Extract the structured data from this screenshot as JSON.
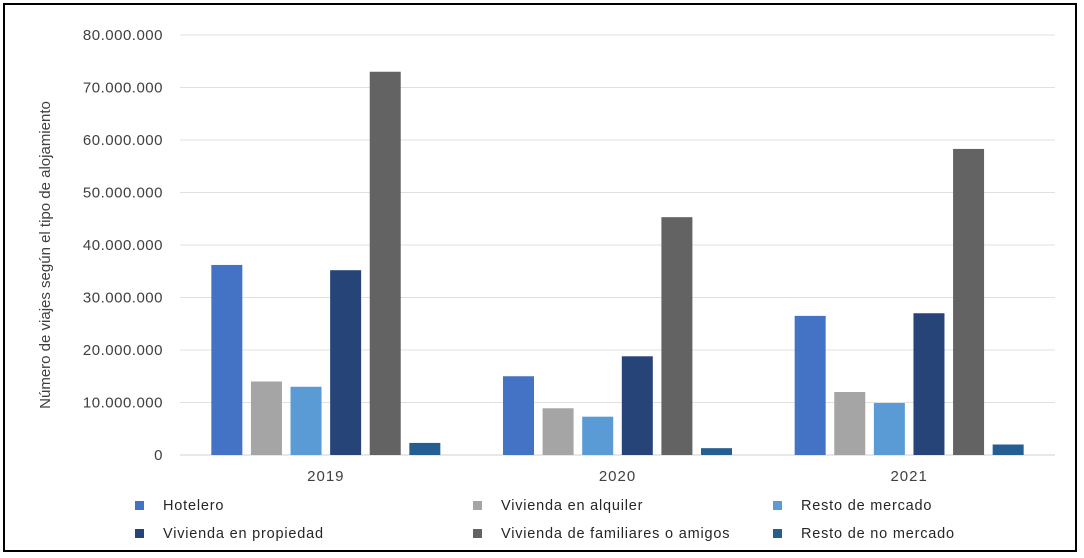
{
  "chart_data": {
    "type": "bar",
    "title": "",
    "xlabel": "",
    "ylabel": "Número de viajes según el tipo de alojamiento",
    "ylim": [
      0,
      80000000
    ],
    "ytick_step": 10000000,
    "ytick_labels": [
      "0",
      "10.000.000",
      "20.000.000",
      "30.000.000",
      "40.000.000",
      "50.000.000",
      "60.000.000",
      "70.000.000",
      "80.000.000"
    ],
    "grid": true,
    "legend_position": "bottom",
    "categories": [
      "2019",
      "2020",
      "2021"
    ],
    "series": [
      {
        "name": "Hotelero",
        "color": "#4472C4",
        "values": [
          36200000,
          15000000,
          26500000
        ]
      },
      {
        "name": "Vivienda en alquiler",
        "color": "#A5A5A5",
        "values": [
          14000000,
          8900000,
          12000000
        ]
      },
      {
        "name": "Resto de mercado",
        "color": "#5B9BD5",
        "values": [
          13000000,
          7300000,
          9900000
        ]
      },
      {
        "name": "Vivienda en propiedad",
        "color": "#264478",
        "values": [
          35200000,
          18800000,
          27000000
        ]
      },
      {
        "name": "Vivienda de familiares o amigos",
        "color": "#636363",
        "values": [
          73000000,
          45300000,
          58300000
        ]
      },
      {
        "name": "Resto de no mercado",
        "color": "#255E91",
        "values": [
          2300000,
          1300000,
          2000000
        ]
      }
    ]
  }
}
